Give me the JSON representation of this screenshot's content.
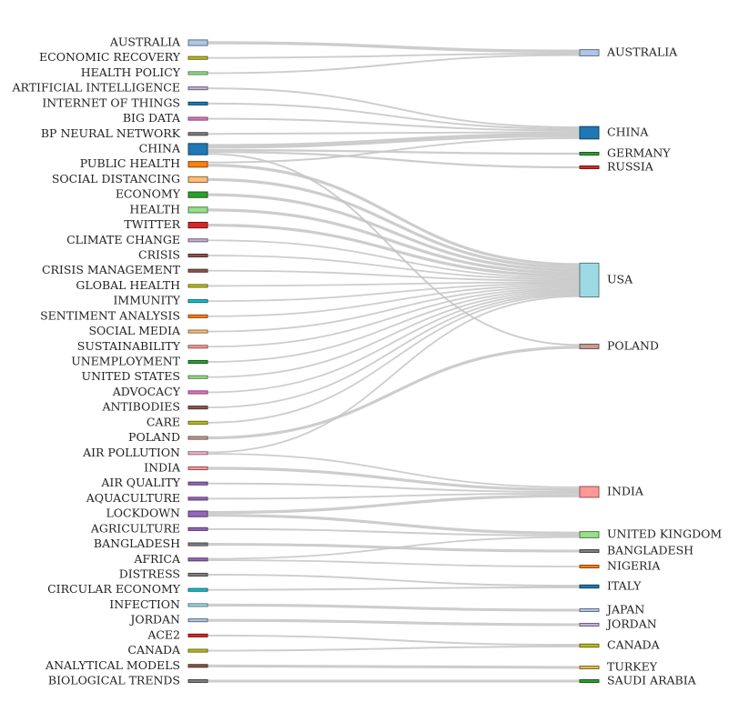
{
  "chart_data": {
    "type": "sankey",
    "sources": [
      {
        "name": "AUSTRALIA",
        "color": "#aec7e8",
        "weight": 2
      },
      {
        "name": "ECONOMIC RECOVERY",
        "color": "#bcbd22",
        "weight": 1
      },
      {
        "name": "HEALTH POLICY",
        "color": "#98df8a",
        "weight": 1
      },
      {
        "name": "ARTIFICIAL INTELLIGENCE",
        "color": "#c5b0d5",
        "weight": 1
      },
      {
        "name": "INTERNET OF THINGS",
        "color": "#1f77b4",
        "weight": 1
      },
      {
        "name": "BIG DATA",
        "color": "#e377c2",
        "weight": 1
      },
      {
        "name": "BP NEURAL NETWORK",
        "color": "#7f7f7f",
        "weight": 1
      },
      {
        "name": "CHINA",
        "color": "#1f77b4",
        "weight": 4
      },
      {
        "name": "PUBLIC HEALTH",
        "color": "#ff7f0e",
        "weight": 2
      },
      {
        "name": "SOCIAL DISTANCING",
        "color": "#ffbb78",
        "weight": 2
      },
      {
        "name": "ECONOMY",
        "color": "#2ca02c",
        "weight": 2
      },
      {
        "name": "HEALTH",
        "color": "#98df8a",
        "weight": 2
      },
      {
        "name": "TWITTER",
        "color": "#d62728",
        "weight": 2
      },
      {
        "name": "CLIMATE CHANGE",
        "color": "#c5b0d5",
        "weight": 1
      },
      {
        "name": "CRISIS",
        "color": "#8c564b",
        "weight": 1
      },
      {
        "name": "CRISIS MANAGEMENT",
        "color": "#8c564b",
        "weight": 1
      },
      {
        "name": "GLOBAL HEALTH",
        "color": "#bcbd22",
        "weight": 1
      },
      {
        "name": "IMMUNITY",
        "color": "#17becf",
        "weight": 1
      },
      {
        "name": "SENTIMENT ANALYSIS",
        "color": "#ff7f0e",
        "weight": 1
      },
      {
        "name": "SOCIAL MEDIA",
        "color": "#ffbb78",
        "weight": 1
      },
      {
        "name": "SUSTAINABILITY",
        "color": "#ff9896",
        "weight": 1
      },
      {
        "name": "UNEMPLOYMENT",
        "color": "#2ca02c",
        "weight": 1
      },
      {
        "name": "UNITED STATES",
        "color": "#98df8a",
        "weight": 1
      },
      {
        "name": "ADVOCACY",
        "color": "#e377c2",
        "weight": 1
      },
      {
        "name": "ANTIBODIES",
        "color": "#8c564b",
        "weight": 1
      },
      {
        "name": "CARE",
        "color": "#bcbd22",
        "weight": 1
      },
      {
        "name": "POLAND",
        "color": "#c49c94",
        "weight": 1
      },
      {
        "name": "AIR POLLUTION",
        "color": "#f7b6d2",
        "weight": 1
      },
      {
        "name": "INDIA",
        "color": "#ff9896",
        "weight": 1
      },
      {
        "name": "AIR QUALITY",
        "color": "#9467bd",
        "weight": 1
      },
      {
        "name": "AQUACULTURE",
        "color": "#9467bd",
        "weight": 1
      },
      {
        "name": "LOCKDOWN",
        "color": "#9467bd",
        "weight": 2
      },
      {
        "name": "AGRICULTURE",
        "color": "#9467bd",
        "weight": 1
      },
      {
        "name": "BANGLADESH",
        "color": "#7f7f7f",
        "weight": 1
      },
      {
        "name": "AFRICA",
        "color": "#9467bd",
        "weight": 1
      },
      {
        "name": "DISTRESS",
        "color": "#7f7f7f",
        "weight": 1
      },
      {
        "name": "CIRCULAR ECONOMY",
        "color": "#17becf",
        "weight": 1
      },
      {
        "name": "INFECTION",
        "color": "#9edae5",
        "weight": 1
      },
      {
        "name": "JORDAN",
        "color": "#aec7e8",
        "weight": 1
      },
      {
        "name": "ACE2",
        "color": "#d62728",
        "weight": 1
      },
      {
        "name": "CANADA",
        "color": "#bcbd22",
        "weight": 1
      },
      {
        "name": "ANALYTICAL MODELS",
        "color": "#8c564b",
        "weight": 1
      },
      {
        "name": "BIOLOGICAL TRENDS",
        "color": "#7f7f7f",
        "weight": 1
      }
    ],
    "targets": [
      {
        "name": "AUSTRALIA",
        "color": "#aec7e8"
      },
      {
        "name": "CHINA",
        "color": "#1f77b4"
      },
      {
        "name": "GERMANY",
        "color": "#2ca02c"
      },
      {
        "name": "RUSSIA",
        "color": "#d62728"
      },
      {
        "name": "USA",
        "color": "#9edae5"
      },
      {
        "name": "POLAND",
        "color": "#c49c94"
      },
      {
        "name": "INDIA",
        "color": "#ff9896"
      },
      {
        "name": "UNITED KINGDOM",
        "color": "#98df8a"
      },
      {
        "name": "BANGLADESH",
        "color": "#7f7f7f"
      },
      {
        "name": "NIGERIA",
        "color": "#ff7f0e"
      },
      {
        "name": "ITALY",
        "color": "#1f77b4"
      },
      {
        "name": "JAPAN",
        "color": "#aec7e8"
      },
      {
        "name": "JORDAN",
        "color": "#c5b0d5"
      },
      {
        "name": "CANADA",
        "color": "#bcbd22"
      },
      {
        "name": "TURKEY",
        "color": "#e7ba52"
      },
      {
        "name": "SAUDI ARABIA",
        "color": "#2ca02c"
      }
    ],
    "links": [
      {
        "source": "AUSTRALIA",
        "target": "AUSTRALIA",
        "value": 2
      },
      {
        "source": "ECONOMIC RECOVERY",
        "target": "AUSTRALIA",
        "value": 1
      },
      {
        "source": "HEALTH POLICY",
        "target": "AUSTRALIA",
        "value": 1
      },
      {
        "source": "ARTIFICIAL INTELLIGENCE",
        "target": "CHINA",
        "value": 1
      },
      {
        "source": "INTERNET OF THINGS",
        "target": "CHINA",
        "value": 1
      },
      {
        "source": "BIG DATA",
        "target": "CHINA",
        "value": 1
      },
      {
        "source": "BP NEURAL NETWORK",
        "target": "CHINA",
        "value": 1
      },
      {
        "source": "CHINA",
        "target": "CHINA",
        "value": 3
      },
      {
        "source": "CHINA",
        "target": "GERMANY",
        "value": 1
      },
      {
        "source": "CHINA",
        "target": "RUSSIA",
        "value": 1
      },
      {
        "source": "CHINA",
        "target": "POLAND",
        "value": 1
      },
      {
        "source": "PUBLIC HEALTH",
        "target": "CHINA",
        "value": 1
      },
      {
        "source": "PUBLIC HEALTH",
        "target": "USA",
        "value": 2
      },
      {
        "source": "SOCIAL DISTANCING",
        "target": "USA",
        "value": 2
      },
      {
        "source": "ECONOMY",
        "target": "USA",
        "value": 2
      },
      {
        "source": "HEALTH",
        "target": "USA",
        "value": 2
      },
      {
        "source": "TWITTER",
        "target": "USA",
        "value": 2
      },
      {
        "source": "CLIMATE CHANGE",
        "target": "USA",
        "value": 1
      },
      {
        "source": "CRISIS",
        "target": "USA",
        "value": 1
      },
      {
        "source": "CRISIS MANAGEMENT",
        "target": "USA",
        "value": 1
      },
      {
        "source": "GLOBAL HEALTH",
        "target": "USA",
        "value": 1
      },
      {
        "source": "IMMUNITY",
        "target": "USA",
        "value": 1
      },
      {
        "source": "SENTIMENT ANALYSIS",
        "target": "USA",
        "value": 1
      },
      {
        "source": "SOCIAL MEDIA",
        "target": "USA",
        "value": 1
      },
      {
        "source": "SUSTAINABILITY",
        "target": "USA",
        "value": 1
      },
      {
        "source": "UNEMPLOYMENT",
        "target": "USA",
        "value": 1
      },
      {
        "source": "UNITED STATES",
        "target": "USA",
        "value": 1
      },
      {
        "source": "ADVOCACY",
        "target": "USA",
        "value": 1
      },
      {
        "source": "ANTIBODIES",
        "target": "USA",
        "value": 1
      },
      {
        "source": "CARE",
        "target": "USA",
        "value": 1
      },
      {
        "source": "POLAND",
        "target": "POLAND",
        "value": 2
      },
      {
        "source": "AIR POLLUTION",
        "target": "USA",
        "value": 1
      },
      {
        "source": "AIR POLLUTION",
        "target": "INDIA",
        "value": 1
      },
      {
        "source": "INDIA",
        "target": "INDIA",
        "value": 2
      },
      {
        "source": "AIR QUALITY",
        "target": "INDIA",
        "value": 1
      },
      {
        "source": "AQUACULTURE",
        "target": "INDIA",
        "value": 1
      },
      {
        "source": "LOCKDOWN",
        "target": "INDIA",
        "value": 2
      },
      {
        "source": "LOCKDOWN",
        "target": "UNITED KINGDOM",
        "value": 2
      },
      {
        "source": "AGRICULTURE",
        "target": "UNITED KINGDOM",
        "value": 1
      },
      {
        "source": "AFRICA",
        "target": "UNITED KINGDOM",
        "value": 1
      },
      {
        "source": "BANGLADESH",
        "target": "BANGLADESH",
        "value": 1
      },
      {
        "source": "AFRICA",
        "target": "NIGERIA",
        "value": 1
      },
      {
        "source": "DISTRESS",
        "target": "ITALY",
        "value": 1
      },
      {
        "source": "CIRCULAR ECONOMY",
        "target": "ITALY",
        "value": 1
      },
      {
        "source": "INFECTION",
        "target": "JAPAN",
        "value": 1
      },
      {
        "source": "JORDAN",
        "target": "JORDAN",
        "value": 1
      },
      {
        "source": "ACE2",
        "target": "CANADA",
        "value": 1
      },
      {
        "source": "CANADA",
        "target": "CANADA",
        "value": 1
      },
      {
        "source": "ANALYTICAL MODELS",
        "target": "TURKEY",
        "value": 1
      },
      {
        "source": "BIOLOGICAL TRENDS",
        "target": "SAUDI ARABIA",
        "value": 1
      }
    ]
  }
}
